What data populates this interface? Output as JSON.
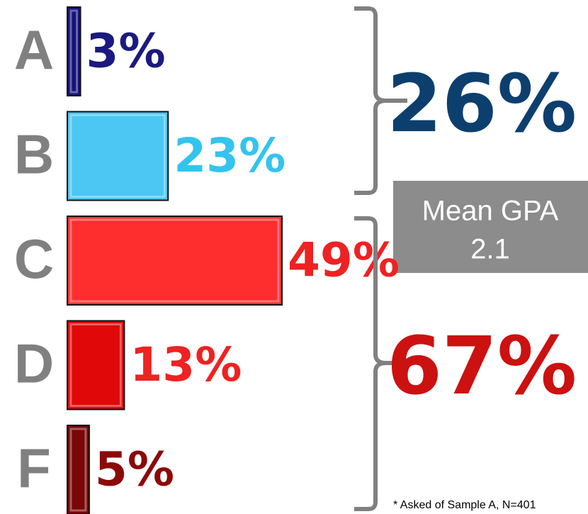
{
  "chart_data": {
    "type": "bar",
    "orientation": "horizontal",
    "categories": [
      "A",
      "B",
      "C",
      "D",
      "F"
    ],
    "values": [
      3,
      23,
      49,
      13,
      5
    ],
    "value_labels": [
      "3%",
      "23%",
      "49%",
      "13%",
      "5%"
    ],
    "colors": [
      "#14147a",
      "#4cc6f2",
      "#ff2e2e",
      "#e00808",
      "#7a0606"
    ],
    "label_colors": [
      "#1a1a80",
      "#33c4ee",
      "#ee2222",
      "#ee2222",
      "#8b0a0a"
    ],
    "groups": [
      {
        "value": 26,
        "label": "26%",
        "color": "#0d3f6e"
      },
      {
        "value": 67,
        "label": "67%",
        "color": "#cc1111"
      }
    ],
    "box": {
      "title": "Mean GPA",
      "value": "2.1"
    },
    "footnote": "* Asked of Sample A, N=401"
  }
}
